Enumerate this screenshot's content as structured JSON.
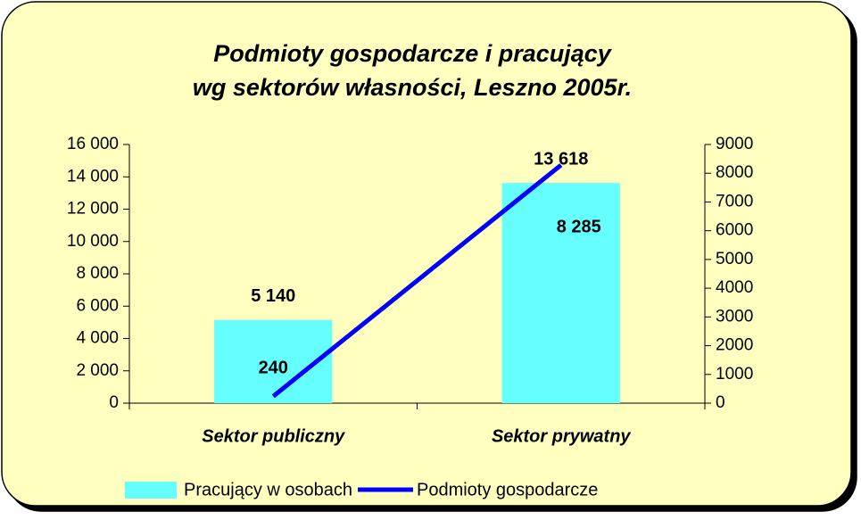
{
  "chart_data": {
    "type": "bar_line",
    "title": [
      "Podmioty gospodarcze i pracujący",
      "wg sektorów własności, Leszno 2005r."
    ],
    "categories": [
      "Sektor publiczny",
      "Sektor prywatny"
    ],
    "series": [
      {
        "name": "Pracujący w osobach",
        "type": "bar",
        "color": "#66ffff",
        "values": [
          5140,
          13618
        ],
        "value_labels": [
          "5 140",
          "13 618"
        ]
      },
      {
        "name": "Podmioty gospodarcze",
        "type": "line",
        "axis": "y2",
        "color": "#0000ff",
        "values": [
          240,
          8285
        ],
        "value_labels": [
          "240",
          "8 285"
        ]
      }
    ],
    "ylim": [
      0,
      16000
    ],
    "yticks": [
      0,
      {
        "value": 2000,
        "label": "2 000"
      },
      {
        "value": 4000,
        "label": "4 000"
      },
      {
        "value": 6000,
        "label": "6 000"
      },
      {
        "value": 8000,
        "label": "8 000"
      },
      {
        "value": 10000,
        "label": "10 000"
      },
      {
        "value": 12000,
        "label": "12 000"
      },
      {
        "value": 14000,
        "label": "14 000"
      },
      {
        "value": 16000,
        "label": "16 000"
      }
    ],
    "y2lim": [
      0,
      9000
    ],
    "y2ticks": [
      0,
      1000,
      2000,
      3000,
      4000,
      5000,
      6000,
      7000,
      8000,
      9000
    ],
    "legend": "bottom",
    "grid": false
  }
}
